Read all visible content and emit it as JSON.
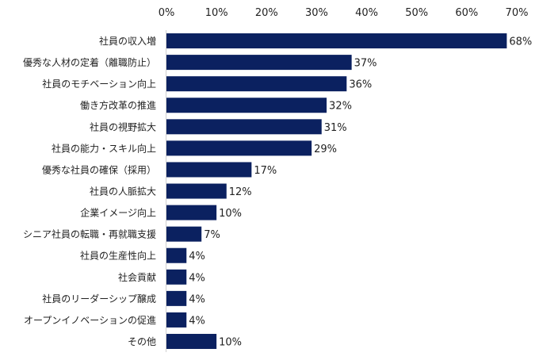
{
  "chart_data": {
    "type": "bar",
    "orientation": "horizontal",
    "title": "",
    "xlabel": "",
    "ylabel": "",
    "xlim": [
      0,
      70
    ],
    "ticks": [
      "0%",
      "10%",
      "20%",
      "30%",
      "40%",
      "50%",
      "60%",
      "70%"
    ],
    "tick_values": [
      0,
      10,
      20,
      30,
      40,
      50,
      60,
      70
    ],
    "categories": [
      "社員の収入増",
      "優秀な人材の定着（離職防止）",
      "社員のモチベーション向上",
      "働き方改革の推進",
      "社員の視野拡大",
      "社員の能力・スキル向上",
      "優秀な社員の確保（採用）",
      "社員の人脈拡大",
      "企業イメージ向上",
      "シニア社員の転職・再就職支援",
      "社員の生産性向上",
      "社会貢献",
      "社員のリーダーシップ醸成",
      "オープンイノベーションの促進",
      "その他"
    ],
    "values": [
      68,
      37,
      36,
      32,
      31,
      29,
      17,
      12,
      10,
      7,
      4,
      4,
      4,
      4,
      10
    ],
    "value_labels": [
      "68%",
      "37%",
      "36%",
      "32%",
      "31%",
      "29%",
      "17%",
      "12%",
      "10%",
      "7%",
      "4%",
      "4%",
      "4%",
      "4%",
      "10%"
    ],
    "grid": false,
    "legend": "none",
    "bar_color": "#0b2160",
    "axis_color": "#d0d0d0"
  }
}
